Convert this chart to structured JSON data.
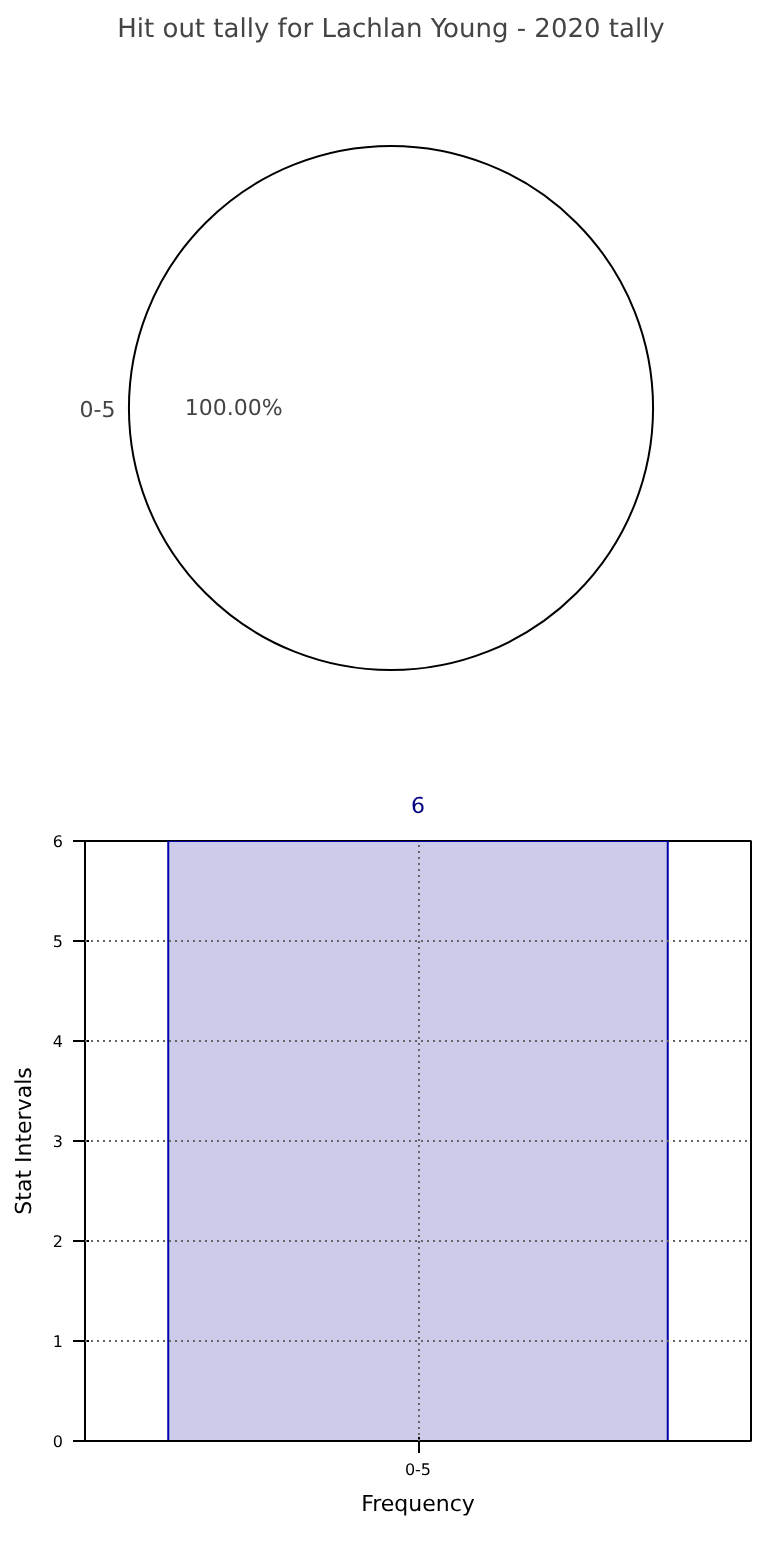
{
  "chart_data": [
    {
      "type": "pie",
      "title": "Hit out tally for Lachlan Young - 2020 tally",
      "categories": [
        "0-5"
      ],
      "values": [
        100
      ],
      "colors": [
        "#ffffff"
      ],
      "value_labels": [
        "100.00%"
      ]
    },
    {
      "type": "bar",
      "categories": [
        "0-5"
      ],
      "values": [
        6
      ],
      "color": "#ccccea",
      "xlabel": "Frequency",
      "ylabel": "Stat Intervals",
      "ylim": [
        0,
        6
      ],
      "yticks": [
        0,
        1,
        2,
        3,
        4,
        5,
        6
      ],
      "grid": true,
      "data_labels": true
    }
  ]
}
